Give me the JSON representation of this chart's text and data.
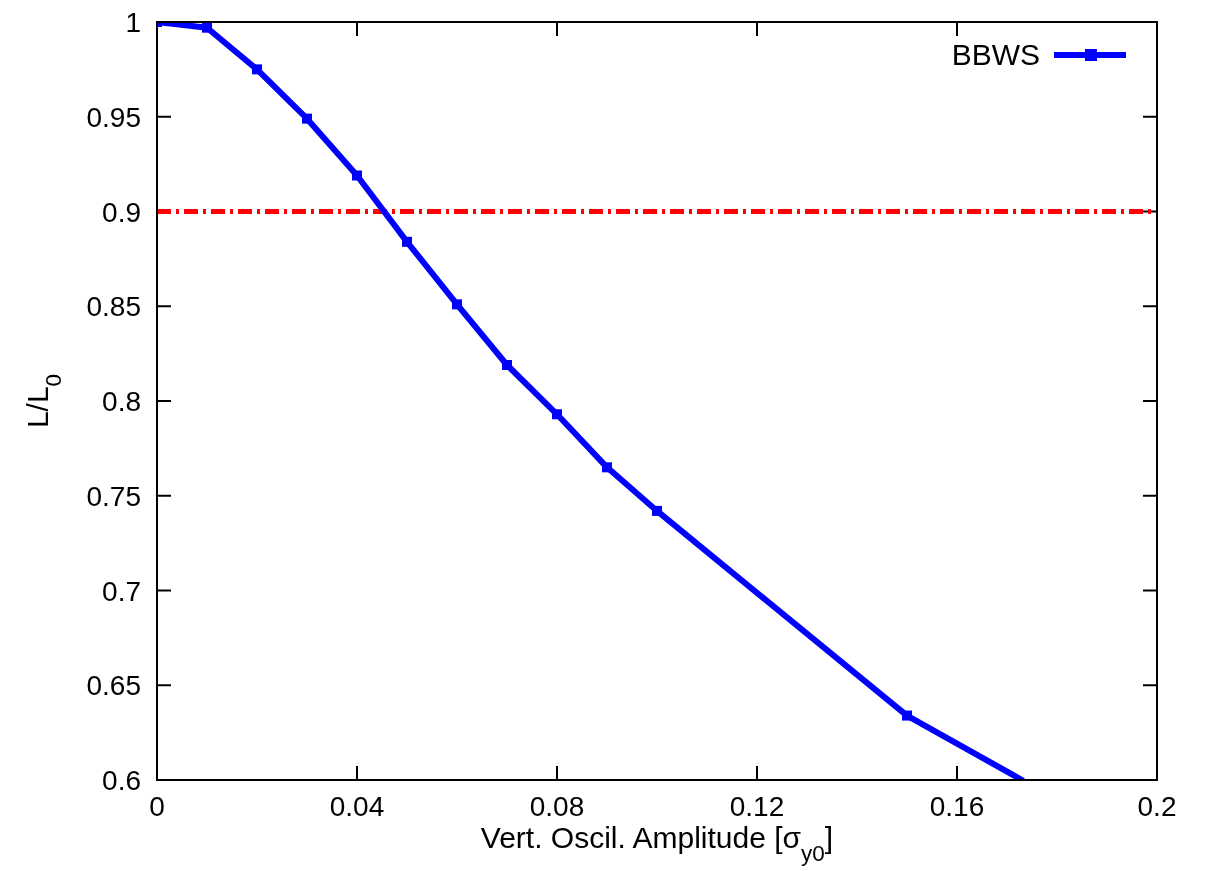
{
  "chart_data": {
    "type": "line",
    "xlabel": "Vert. Oscil. Amplitude [σ$_{y0}$]",
    "ylabel": "L/L$_{0}$",
    "x": [
      0,
      0.01,
      0.02,
      0.03,
      0.04,
      0.05,
      0.06,
      0.07,
      0.08,
      0.09,
      0.1,
      0.15,
      0.173
    ],
    "series": [
      {
        "name": "BBWS",
        "color": "#0000ff",
        "values": [
          1.0,
          0.997,
          0.975,
          0.949,
          0.919,
          0.884,
          0.851,
          0.819,
          0.793,
          0.765,
          0.742,
          0.634,
          0.6
        ]
      }
    ],
    "xlim": [
      0,
      0.2
    ],
    "xticks": [
      0,
      0.04,
      0.08,
      0.12,
      0.16,
      0.2
    ],
    "ylim": [
      0.6,
      1
    ],
    "yticks": [
      0.6,
      0.65,
      0.7,
      0.75,
      0.8,
      0.85,
      0.9,
      0.95,
      1
    ],
    "ref_lines": [
      {
        "axis": "y",
        "value": 0.9,
        "color": "#ff0000",
        "line_style": "dashed"
      }
    ],
    "legend": "top right",
    "marker": "square",
    "line_style": "solid",
    "grid": false
  }
}
